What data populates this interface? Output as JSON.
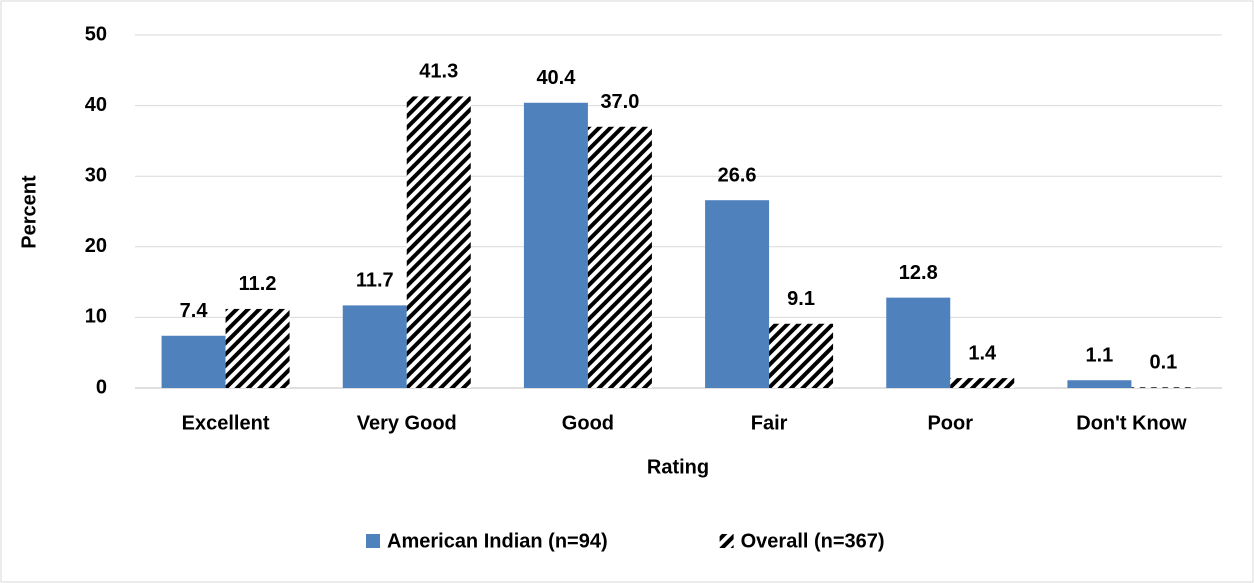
{
  "chart_data": {
    "type": "bar",
    "x_label": "Rating",
    "y_label": "Percent",
    "categories": [
      "Excellent",
      "Very Good",
      "Good",
      "Fair",
      "Poor",
      "Don't Know"
    ],
    "series": [
      {
        "name": "American Indian (n=94)",
        "color": "#4f81bd",
        "pattern": "solid",
        "values": [
          7.4,
          11.7,
          40.4,
          26.6,
          12.8,
          1.1
        ],
        "value_labels": [
          "7.4",
          "11.7",
          "40.4",
          "26.6",
          "12.8",
          "1.1"
        ]
      },
      {
        "name": "Overall (n=367)",
        "color": "#000000",
        "pattern": "hatch",
        "values": [
          11.2,
          41.3,
          37.0,
          9.1,
          1.4,
          0.1
        ],
        "value_labels": [
          "11.2",
          "41.3",
          "37.0",
          "9.1",
          "1.4",
          "0.1"
        ]
      }
    ],
    "ylim": [
      0,
      50
    ],
    "yticks": [
      0,
      10,
      20,
      30,
      40,
      50
    ],
    "grid": true,
    "legend": "bottom"
  }
}
